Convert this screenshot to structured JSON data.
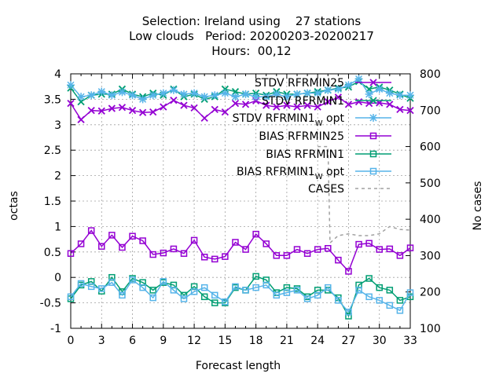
{
  "chart_data": {
    "type": "line",
    "title_lines": [
      "Selection: Ireland using    27 stations",
      "Low clouds   Period: 20200203-20200217",
      "Hours:  00,12"
    ],
    "xlabel": "Forecast length",
    "ylabel": "octas",
    "y2label": "No cases",
    "xlim": [
      0,
      33
    ],
    "ylim": [
      -1,
      4
    ],
    "y2lim": [
      100,
      800
    ],
    "xticks": [
      0,
      3,
      6,
      9,
      12,
      15,
      18,
      21,
      24,
      27,
      30,
      33
    ],
    "yticks": [
      -1,
      -0.5,
      0,
      0.5,
      1,
      1.5,
      2,
      2.5,
      3,
      3.5,
      4
    ],
    "y2ticks": [
      100,
      200,
      300,
      400,
      500,
      600,
      700,
      800
    ],
    "grid": true,
    "legend_position": "top-right",
    "x": [
      0,
      1,
      2,
      3,
      4,
      5,
      6,
      7,
      8,
      9,
      10,
      11,
      12,
      13,
      14,
      15,
      16,
      17,
      18,
      19,
      20,
      21,
      22,
      23,
      24,
      25,
      26,
      27,
      28,
      29,
      30,
      31,
      32,
      33
    ],
    "series": [
      {
        "name": "STDV RFRMIN25",
        "color": "#9400d3",
        "marker": "x",
        "axis": "y",
        "values": [
          3.42,
          3.1,
          3.28,
          3.27,
          3.32,
          3.34,
          3.28,
          3.24,
          3.25,
          3.35,
          3.48,
          3.38,
          3.33,
          3.13,
          3.3,
          3.25,
          3.42,
          3.4,
          3.47,
          3.38,
          3.35,
          3.38,
          3.35,
          3.38,
          3.35,
          3.45,
          3.54,
          3.4,
          3.45,
          3.42,
          3.43,
          3.4,
          3.3,
          3.28
        ]
      },
      {
        "name": "STDV RFRMIN1",
        "color": "#009e73",
        "marker": "x",
        "axis": "y",
        "values": [
          3.72,
          3.45,
          3.58,
          3.6,
          3.6,
          3.7,
          3.6,
          3.55,
          3.62,
          3.58,
          3.7,
          3.55,
          3.6,
          3.5,
          3.55,
          3.7,
          3.65,
          3.6,
          3.62,
          3.58,
          3.65,
          3.6,
          3.6,
          3.62,
          3.65,
          3.68,
          3.72,
          3.74,
          3.85,
          3.7,
          3.74,
          3.68,
          3.6,
          3.52
        ]
      },
      {
        "name": "STDV RFRMIN1 W opt",
        "label_main": "STDV RFRMIN1",
        "label_sub": "W",
        "label_tail": "opt",
        "color": "#56b4e9",
        "marker": "star",
        "axis": "y",
        "values": [
          3.78,
          3.55,
          3.58,
          3.65,
          3.58,
          3.64,
          3.58,
          3.5,
          3.58,
          3.62,
          3.68,
          3.6,
          3.62,
          3.55,
          3.58,
          3.62,
          3.55,
          3.6,
          3.55,
          3.55,
          3.6,
          3.55,
          3.6,
          3.62,
          3.62,
          3.68,
          3.7,
          3.78,
          3.9,
          3.6,
          3.7,
          3.62,
          3.58,
          3.58
        ]
      },
      {
        "name": "BIAS RFRMIN25",
        "color": "#9400d3",
        "marker": "square",
        "axis": "y",
        "values": [
          0.47,
          0.66,
          0.92,
          0.61,
          0.83,
          0.59,
          0.81,
          0.72,
          0.45,
          0.48,
          0.56,
          0.47,
          0.73,
          0.4,
          0.36,
          0.41,
          0.69,
          0.55,
          0.85,
          0.66,
          0.43,
          0.43,
          0.55,
          0.47,
          0.55,
          0.57,
          0.34,
          0.12,
          0.65,
          0.67,
          0.55,
          0.56,
          0.43,
          0.58
        ]
      },
      {
        "name": "BIAS RFRMIN1",
        "color": "#009e73",
        "marker": "square",
        "axis": "y",
        "values": [
          -0.42,
          -0.15,
          -0.08,
          -0.27,
          0.0,
          -0.28,
          -0.02,
          -0.1,
          -0.25,
          -0.1,
          -0.15,
          -0.35,
          -0.18,
          -0.38,
          -0.5,
          -0.5,
          -0.2,
          -0.25,
          0.02,
          -0.05,
          -0.3,
          -0.2,
          -0.22,
          -0.38,
          -0.25,
          -0.25,
          -0.4,
          -0.76,
          -0.15,
          -0.02,
          -0.2,
          -0.25,
          -0.45,
          -0.38
        ]
      },
      {
        "name": "BIAS RFRMIN1 W opt",
        "label_main": "BIAS RFRMIN1",
        "label_sub": "W",
        "label_tail": "opt",
        "color": "#56b4e9",
        "marker": "square",
        "axis": "y",
        "values": [
          -0.38,
          -0.12,
          -0.18,
          -0.22,
          -0.1,
          -0.35,
          -0.05,
          -0.2,
          -0.4,
          -0.08,
          -0.25,
          -0.42,
          -0.28,
          -0.2,
          -0.35,
          -0.48,
          -0.18,
          -0.25,
          -0.2,
          -0.15,
          -0.35,
          -0.3,
          -0.25,
          -0.42,
          -0.35,
          -0.2,
          -0.45,
          -0.68,
          -0.25,
          -0.38,
          -0.45,
          -0.55,
          -0.65,
          -0.3
        ]
      },
      {
        "name": "CASES",
        "color": "#a0a0a0",
        "marker": "none",
        "dash": true,
        "axis": "y2",
        "x": [
          24,
          25,
          25.2,
          26,
          27,
          28,
          29,
          30,
          31,
          32,
          33
        ],
        "values": [
          600,
          600,
          335,
          355,
          360,
          355,
          355,
          360,
          380,
          372,
          370
        ]
      }
    ]
  }
}
